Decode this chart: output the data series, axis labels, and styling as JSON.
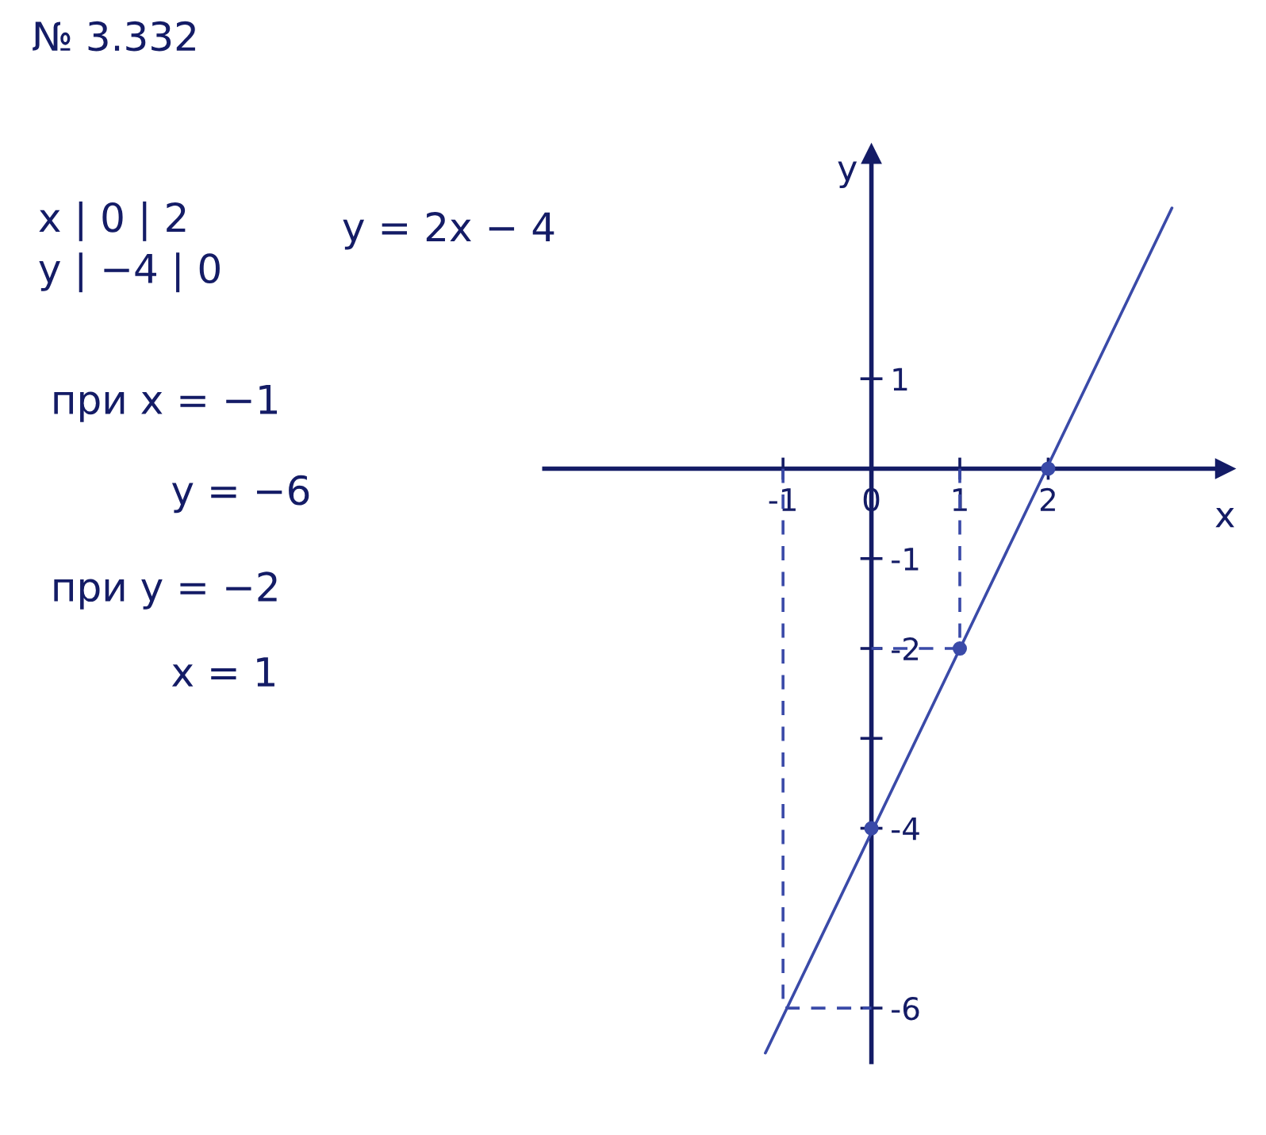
{
  "chart_data": {
    "type": "line",
    "title": "№ 3.332",
    "xlabel": "x",
    "ylabel": "y",
    "annotations": [
      "x | 0 | 2",
      "y | −4 | 0",
      "y = 2x − 4",
      "при x = −1",
      "y = −6",
      "при y = −2",
      "x = 1"
    ],
    "xlim": [
      -3.7,
      4.0
    ],
    "ylim": [
      -6.6,
      3.5
    ],
    "xticks": [
      -1,
      0,
      1,
      2
    ],
    "yticks": [
      1,
      -1,
      -2,
      {
        "value": -3,
        "label": null
      },
      -4,
      -6
    ],
    "series": [
      {
        "color": "#3a4aa8",
        "x": [
          -1.2,
          3.4
        ],
        "values": [
          -6.5,
          2.9
        ]
      },
      {
        "color": "#3a4aa8",
        "line_style": "dashed",
        "x": [
          -1,
          -1,
          0
        ],
        "values": [
          0,
          -6,
          -6
        ]
      },
      {
        "color": "#3a4aa8",
        "line_style": "dashed",
        "x": [
          1,
          1,
          0
        ],
        "values": [
          0,
          -2,
          -2
        ]
      },
      {
        "type": "scatter",
        "color": "#3a4aa8",
        "marker": "circle",
        "x": [
          0,
          1,
          2
        ],
        "values": [
          -4,
          -2,
          0
        ]
      }
    ]
  }
}
